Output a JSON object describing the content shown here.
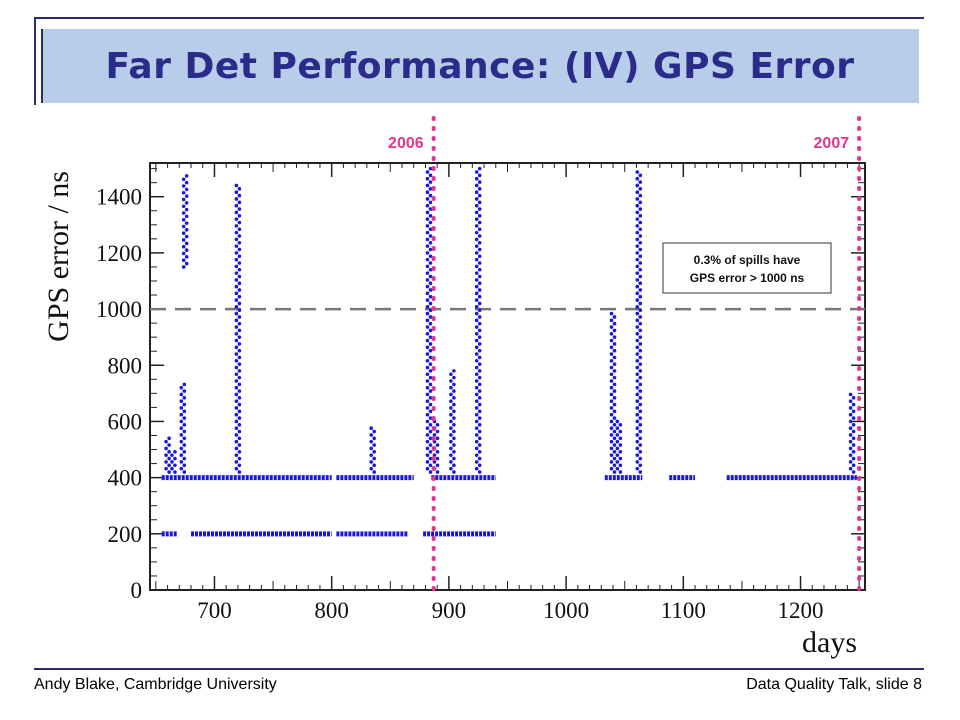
{
  "title": "Far Det Performance: (IV) GPS Error",
  "footer": {
    "left": "Andy Blake, Cambridge University",
    "right": "Data Quality Talk, slide 8"
  },
  "colors": {
    "points": "#1a1ad6",
    "year_markers": "#e2358f",
    "title_bg": "#b7cdea",
    "title_text": "#2b2b8a",
    "threshold": "#777777"
  },
  "chart_data": {
    "type": "scatter",
    "xlabel": "days",
    "ylabel": "GPS error / ns",
    "xlim": [
      645,
      1255
    ],
    "ylim": [
      0,
      1520
    ],
    "x_ticks": [
      700,
      800,
      900,
      1000,
      1100,
      1200
    ],
    "y_ticks": [
      0,
      200,
      400,
      600,
      800,
      1000,
      1200,
      1400
    ],
    "threshold_line": {
      "y": 1000,
      "style": "dashed"
    },
    "year_markers": [
      {
        "x": 887,
        "label": "2006"
      },
      {
        "x": 1250,
        "label": "2007"
      }
    ],
    "annotation": {
      "line1": "0.3% of spills have",
      "line2": "GPS error > 1000 ns"
    },
    "baseline_segments": [
      {
        "y": 400,
        "x_ranges": [
          [
            655,
            800
          ],
          [
            804,
            870
          ],
          [
            885,
            940
          ],
          [
            1033,
            1065
          ],
          [
            1088,
            1110
          ],
          [
            1137,
            1248
          ]
        ]
      },
      {
        "y": 200,
        "x_ranges": [
          [
            655,
            668
          ],
          [
            680,
            800
          ],
          [
            804,
            865
          ],
          [
            878,
            940
          ]
        ]
      }
    ],
    "spike_columns": [
      {
        "x": 660,
        "y_min": 420,
        "y_max": 545
      },
      {
        "x": 665,
        "y_min": 420,
        "y_max": 500
      },
      {
        "x": 673,
        "y_min": 420,
        "y_max": 740
      },
      {
        "x": 675,
        "y_min": 1150,
        "y_max": 1480
      },
      {
        "x": 720,
        "y_min": 420,
        "y_max": 1440
      },
      {
        "x": 835,
        "y_min": 420,
        "y_max": 585
      },
      {
        "x": 883,
        "y_min": 420,
        "y_max": 1500
      },
      {
        "x": 889,
        "y_min": 420,
        "y_max": 600
      },
      {
        "x": 903,
        "y_min": 420,
        "y_max": 790
      },
      {
        "x": 925,
        "y_min": 420,
        "y_max": 1500
      },
      {
        "x": 1040,
        "y_min": 420,
        "y_max": 990
      },
      {
        "x": 1045,
        "y_min": 420,
        "y_max": 600
      },
      {
        "x": 1062,
        "y_min": 420,
        "y_max": 1490
      },
      {
        "x": 1244,
        "y_min": 420,
        "y_max": 700
      }
    ]
  }
}
